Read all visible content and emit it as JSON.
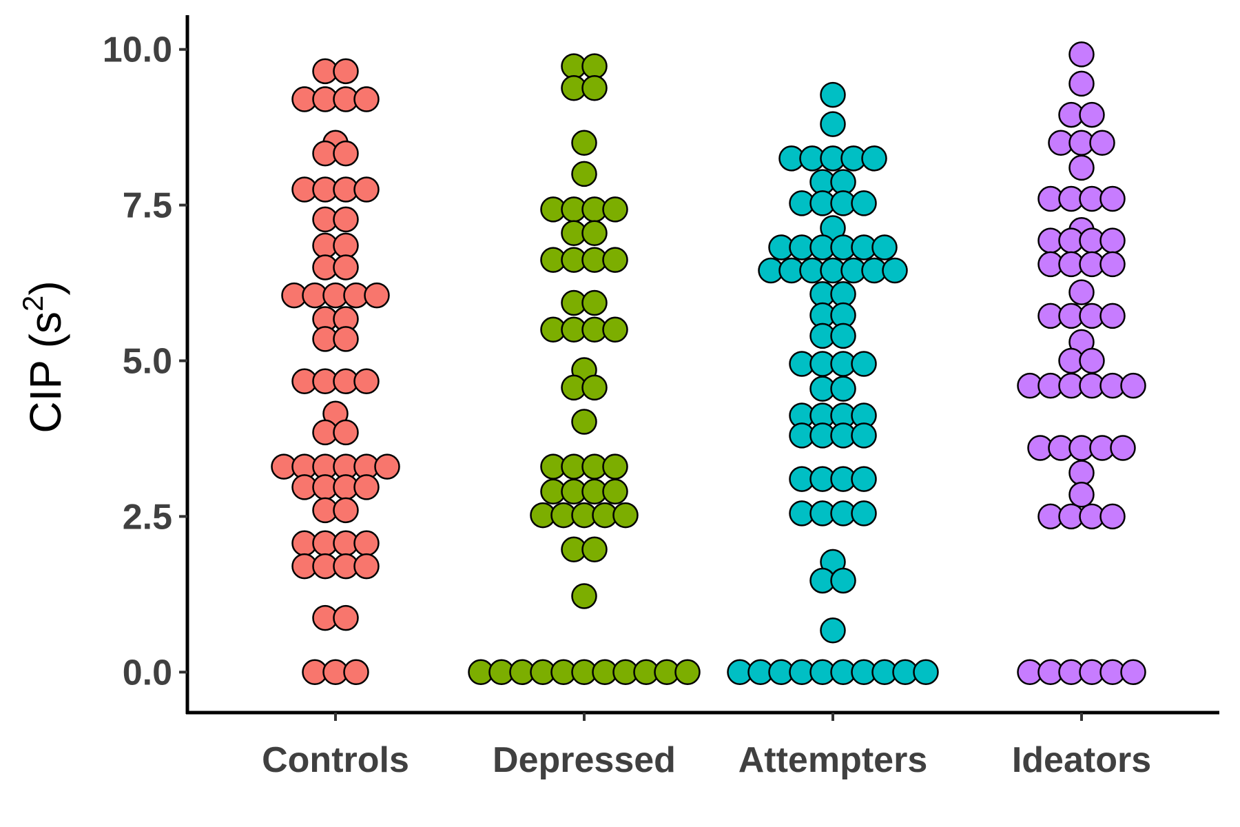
{
  "chart_data": {
    "type": "scatter",
    "subtype": "dotplot",
    "ylabel": "CIP (s",
    "ylabel_superscript": "2",
    "ylabel_close": ")",
    "ylim": [
      -0.65,
      10.55
    ],
    "yticks": [
      0.0,
      2.5,
      5.0,
      7.5,
      10.0
    ],
    "ytick_labels": [
      "0.0",
      "2.5",
      "5.0",
      "7.5",
      "10.0"
    ],
    "grid": false,
    "legend": "none",
    "categories": [
      "Controls",
      "Depressed",
      "Attempters",
      "Ideators"
    ],
    "series": [
      {
        "category": "Controls",
        "color": "#F8766D",
        "points": [
          {
            "y": 9.65,
            "n": 2
          },
          {
            "y": 9.2,
            "n": 4
          },
          {
            "y": 8.5,
            "n": 1
          },
          {
            "y": 8.33,
            "n": 2
          },
          {
            "y": 7.75,
            "n": 4
          },
          {
            "y": 7.27,
            "n": 2
          },
          {
            "y": 6.85,
            "n": 2
          },
          {
            "y": 6.5,
            "n": 2
          },
          {
            "y": 6.05,
            "n": 5
          },
          {
            "y": 5.67,
            "n": 2
          },
          {
            "y": 5.35,
            "n": 2
          },
          {
            "y": 4.67,
            "n": 4
          },
          {
            "y": 4.15,
            "n": 1
          },
          {
            "y": 3.85,
            "n": 2
          },
          {
            "y": 3.3,
            "n": 6
          },
          {
            "y": 2.97,
            "n": 4
          },
          {
            "y": 2.6,
            "n": 2
          },
          {
            "y": 2.07,
            "n": 4
          },
          {
            "y": 1.7,
            "n": 4
          },
          {
            "y": 0.87,
            "n": 2
          },
          {
            "y": 0.0,
            "n": 3
          }
        ]
      },
      {
        "category": "Depressed",
        "color": "#7CAE00",
        "points": [
          {
            "y": 9.73,
            "n": 2
          },
          {
            "y": 9.38,
            "n": 2
          },
          {
            "y": 8.5,
            "n": 1
          },
          {
            "y": 8.0,
            "n": 1
          },
          {
            "y": 7.43,
            "n": 4
          },
          {
            "y": 7.05,
            "n": 2
          },
          {
            "y": 6.62,
            "n": 4
          },
          {
            "y": 5.93,
            "n": 2
          },
          {
            "y": 5.5,
            "n": 4
          },
          {
            "y": 4.85,
            "n": 1
          },
          {
            "y": 4.57,
            "n": 2
          },
          {
            "y": 4.02,
            "n": 1
          },
          {
            "y": 3.3,
            "n": 4
          },
          {
            "y": 2.9,
            "n": 4
          },
          {
            "y": 2.52,
            "n": 5
          },
          {
            "y": 1.97,
            "n": 2
          },
          {
            "y": 1.22,
            "n": 1
          },
          {
            "y": 0.0,
            "n": 11
          }
        ]
      },
      {
        "category": "Attempters",
        "color": "#00BFC4",
        "points": [
          {
            "y": 9.27,
            "n": 1
          },
          {
            "y": 8.8,
            "n": 1
          },
          {
            "y": 8.25,
            "n": 5
          },
          {
            "y": 7.87,
            "n": 2
          },
          {
            "y": 7.53,
            "n": 4
          },
          {
            "y": 7.13,
            "n": 1
          },
          {
            "y": 6.82,
            "n": 6
          },
          {
            "y": 6.45,
            "n": 7
          },
          {
            "y": 6.07,
            "n": 2
          },
          {
            "y": 5.73,
            "n": 2
          },
          {
            "y": 5.4,
            "n": 2
          },
          {
            "y": 4.95,
            "n": 4
          },
          {
            "y": 4.55,
            "n": 2
          },
          {
            "y": 4.12,
            "n": 4
          },
          {
            "y": 3.8,
            "n": 4
          },
          {
            "y": 3.1,
            "n": 4
          },
          {
            "y": 2.55,
            "n": 4
          },
          {
            "y": 1.77,
            "n": 1
          },
          {
            "y": 1.47,
            "n": 2
          },
          {
            "y": 0.67,
            "n": 1
          },
          {
            "y": 0.0,
            "n": 10
          }
        ]
      },
      {
        "category": "Ideators",
        "color": "#C77CFF",
        "points": [
          {
            "y": 9.92,
            "n": 1
          },
          {
            "y": 9.45,
            "n": 1
          },
          {
            "y": 8.95,
            "n": 2
          },
          {
            "y": 8.5,
            "n": 3
          },
          {
            "y": 8.1,
            "n": 1
          },
          {
            "y": 7.6,
            "n": 4
          },
          {
            "y": 7.1,
            "n": 1
          },
          {
            "y": 6.93,
            "n": 4
          },
          {
            "y": 6.55,
            "n": 4
          },
          {
            "y": 6.1,
            "n": 1
          },
          {
            "y": 5.72,
            "n": 4
          },
          {
            "y": 5.3,
            "n": 1
          },
          {
            "y": 5.0,
            "n": 2
          },
          {
            "y": 4.6,
            "n": 6
          },
          {
            "y": 3.6,
            "n": 5
          },
          {
            "y": 3.2,
            "n": 1
          },
          {
            "y": 2.85,
            "n": 1
          },
          {
            "y": 2.5,
            "n": 4
          },
          {
            "y": 0.0,
            "n": 6
          }
        ]
      }
    ]
  }
}
